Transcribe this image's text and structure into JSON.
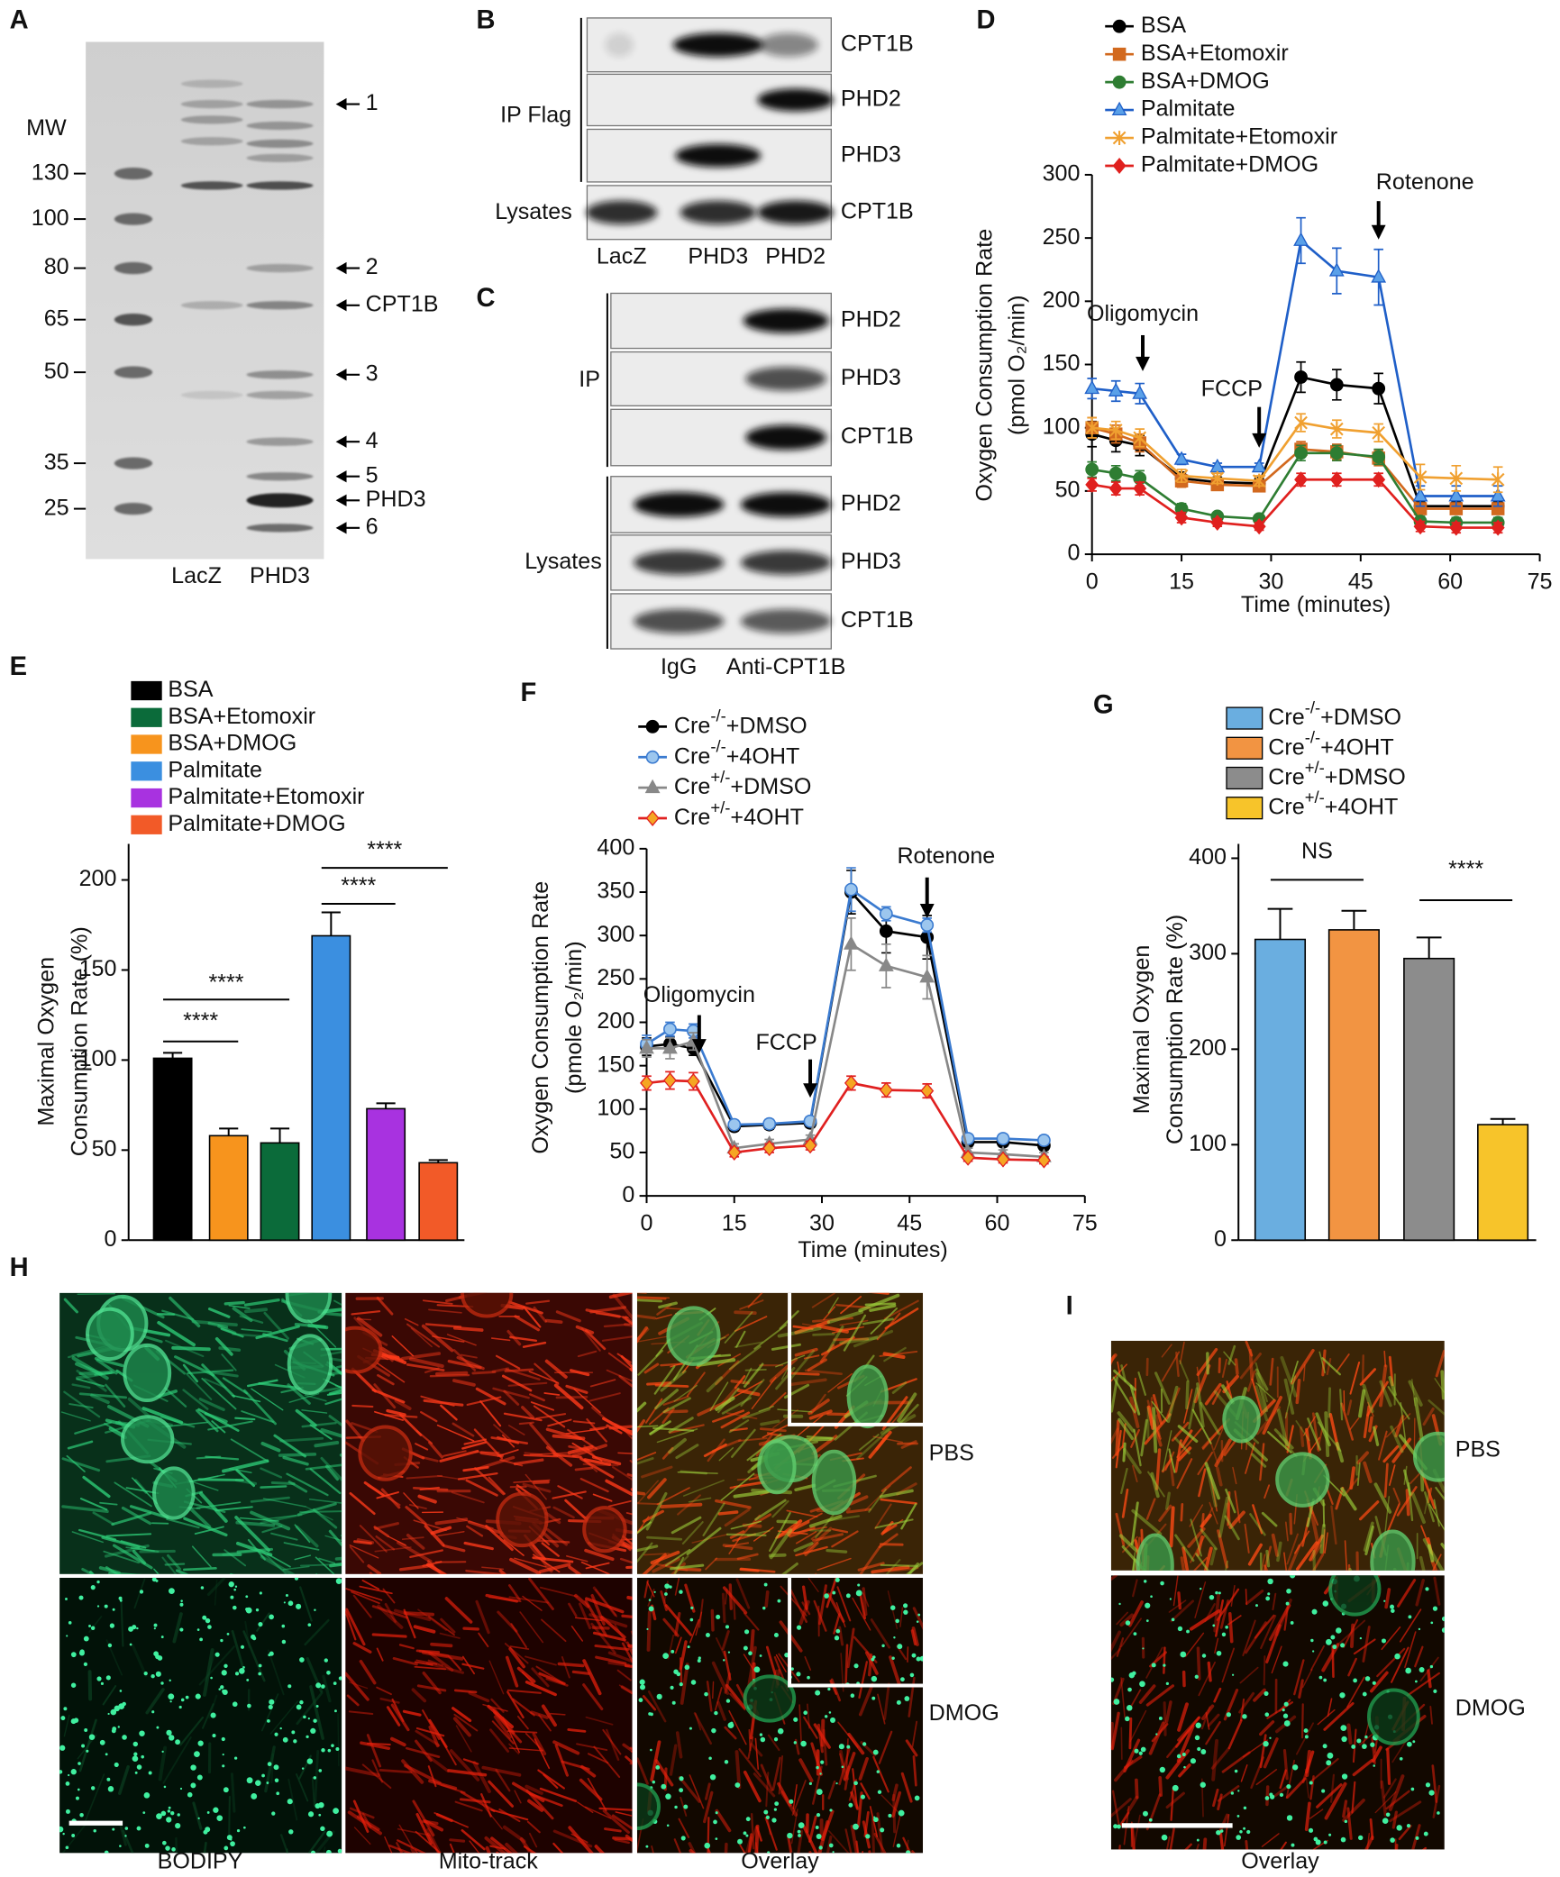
{
  "figure": {
    "A": {
      "label": "A",
      "mw_title": "MW",
      "mw": [
        130,
        100,
        80,
        65,
        50,
        35,
        25
      ],
      "lanes": [
        "LacZ",
        "PHD3"
      ],
      "bands": [
        "1",
        "2",
        "CPT1B",
        "3",
        "4",
        "5",
        "PHD3",
        "6"
      ]
    },
    "B": {
      "label": "B",
      "groups": [
        "IP Flag",
        "Lysates"
      ],
      "rows": [
        "CPT1B",
        "PHD2",
        "PHD3",
        "CPT1B"
      ],
      "lanes": [
        "LacZ",
        "PHD3",
        "PHD2"
      ]
    },
    "C": {
      "label": "C",
      "groups": [
        "IP",
        "Lysates"
      ],
      "rows": [
        "PHD2",
        "PHD3",
        "CPT1B",
        "PHD2",
        "PHD3",
        "CPT1B"
      ],
      "lanes": [
        "IgG",
        "Anti-CPT1B"
      ]
    },
    "H": {
      "label": "H",
      "columns": [
        "BODIPY",
        "Mito-track",
        "Overlay"
      ],
      "rows": [
        "PBS",
        "DMOG"
      ]
    },
    "I": {
      "label": "I",
      "rows": [
        "PBS",
        "DMOG"
      ],
      "column": "Overlay"
    }
  },
  "chart_data": [
    {
      "type": "line",
      "label": "D",
      "x": [
        0,
        4,
        8,
        15,
        21,
        28,
        35,
        41,
        48,
        55,
        61,
        68
      ],
      "xlim": [
        0,
        75
      ],
      "xticks": [
        0,
        15,
        30,
        45,
        60,
        75
      ],
      "ylim": [
        0,
        300
      ],
      "yticks": [
        0,
        50,
        100,
        150,
        200,
        250,
        300
      ],
      "xlabel": "Time (minutes)",
      "ylabel": [
        "Oxygen Consumption Rate",
        "(pmol O₂/min)"
      ],
      "annotations": [
        {
          "text": "Oligomycin",
          "x": 8.5
        },
        {
          "text": "FCCP",
          "x": 28
        },
        {
          "text": "Rotenone",
          "x": 48
        }
      ],
      "series": [
        {
          "name": "BSA",
          "color": "#000000",
          "marker": "circle",
          "values": [
            95,
            90,
            86,
            60,
            57,
            56,
            140,
            134,
            131,
            38,
            38,
            38
          ],
          "errors": [
            10,
            9,
            8,
            5,
            4,
            4,
            12,
            12,
            12,
            5,
            5,
            5
          ]
        },
        {
          "name": "BSA+Etomoxir",
          "color": "#d2691e",
          "marker": "square",
          "values": [
            100,
            95,
            88,
            58,
            55,
            54,
            83,
            81,
            76,
            36,
            36,
            36
          ],
          "errors": [
            8,
            7,
            7,
            5,
            4,
            4,
            6,
            6,
            6,
            4,
            4,
            4
          ]
        },
        {
          "name": "BSA+DMOG",
          "color": "#2e7d32",
          "marker": "circle",
          "values": [
            67,
            64,
            60,
            36,
            30,
            28,
            80,
            80,
            77,
            26,
            25,
            25
          ],
          "errors": [
            6,
            6,
            6,
            4,
            3,
            3,
            6,
            6,
            6,
            4,
            4,
            4
          ]
        },
        {
          "name": "Palmitate",
          "color": "#1f5fc8",
          "marker": "triangle",
          "marker_fill": "#5aa0e8",
          "values": [
            131,
            129,
            127,
            75,
            69,
            69,
            248,
            224,
            219,
            46,
            46,
            46
          ],
          "errors": [
            8,
            8,
            8,
            4,
            3,
            3,
            18,
            18,
            22,
            8,
            8,
            8
          ]
        },
        {
          "name": "Palmitate+Etomoxir",
          "color": "#f0a030",
          "marker": "x",
          "values": [
            100,
            98,
            92,
            62,
            60,
            58,
            104,
            99,
            96,
            61,
            60,
            59
          ],
          "errors": [
            8,
            7,
            7,
            5,
            4,
            4,
            7,
            7,
            7,
            10,
            10,
            10
          ]
        },
        {
          "name": "Palmitate+DMOG",
          "color": "#e0201e",
          "marker": "diamond",
          "values": [
            55,
            52,
            52,
            29,
            25,
            22,
            59,
            59,
            59,
            22,
            21,
            21
          ],
          "errors": [
            5,
            5,
            5,
            4,
            3,
            3,
            5,
            5,
            5,
            4,
            4,
            4
          ]
        }
      ]
    },
    {
      "type": "bar",
      "label": "E",
      "ylim": [
        0,
        220
      ],
      "yticks": [
        0,
        50,
        100,
        150,
        200
      ],
      "ylabel": [
        "Maximal Oxygen",
        "Consumption Rate (%)"
      ],
      "significance": [
        "****",
        "****",
        "****",
        "****"
      ],
      "series": [
        {
          "name": "BSA",
          "color": "#000000",
          "values": [
            101
          ],
          "errors": [
            3
          ]
        },
        {
          "name": "BSA+Etomoxir",
          "color": "#0b6b3a",
          "values": [
            54
          ],
          "errors": [
            8
          ]
        },
        {
          "name": "BSA+DMOG",
          "color": "#f7941d",
          "values": [
            58
          ],
          "errors": [
            4
          ]
        },
        {
          "name": "Palmitate",
          "color": "#3b8fe0",
          "values": [
            169
          ],
          "errors": [
            13
          ]
        },
        {
          "name": "Palmitate+Etomoxir",
          "color": "#a832e0",
          "values": [
            73
          ],
          "errors": [
            3
          ]
        },
        {
          "name": "Palmitate+DMOG",
          "color": "#f25a28",
          "values": [
            43
          ],
          "errors": [
            1.5
          ]
        }
      ]
    },
    {
      "type": "line",
      "label": "F",
      "x": [
        0,
        4,
        8,
        15,
        21,
        28,
        35,
        41,
        48,
        55,
        61,
        68
      ],
      "xlim": [
        0,
        75
      ],
      "xticks": [
        0,
        15,
        30,
        45,
        60,
        75
      ],
      "ylim": [
        0,
        400
      ],
      "yticks": [
        0,
        50,
        100,
        150,
        200,
        250,
        300,
        350,
        400
      ],
      "xlabel": "Time (minutes)",
      "ylabel": [
        "Oxygen Consumption Rate",
        "(pmole O₂/min)"
      ],
      "annotations": [
        {
          "text": "Oligomycin",
          "x": 9
        },
        {
          "text": "FCCP",
          "x": 28
        },
        {
          "text": "Rotenone",
          "x": 48
        }
      ],
      "series": [
        {
          "name": "Cre-/-+DMSO",
          "color": "#000000",
          "marker": "circle",
          "values": [
            172,
            175,
            170,
            80,
            82,
            84,
            350,
            305,
            298,
            62,
            62,
            58
          ],
          "errors": [
            10,
            8,
            8,
            5,
            5,
            5,
            25,
            25,
            25,
            5,
            5,
            5
          ]
        },
        {
          "name": "Cre-/-+4OHT",
          "color": "#3b7bd0",
          "marker": "circle",
          "marker_fill": "#9cc6ee",
          "values": [
            175,
            192,
            190,
            82,
            83,
            86,
            353,
            325,
            312,
            66,
            66,
            64
          ],
          "errors": [
            10,
            8,
            8,
            5,
            5,
            5,
            25,
            8,
            8,
            5,
            5,
            5
          ]
        },
        {
          "name": "Cre+/-+DMSO",
          "color": "#888888",
          "marker": "triangle",
          "values": [
            170,
            170,
            178,
            55,
            60,
            65,
            290,
            265,
            252,
            50,
            48,
            45
          ],
          "errors": [
            10,
            12,
            10,
            5,
            5,
            5,
            30,
            25,
            25,
            5,
            5,
            5
          ]
        },
        {
          "name": "Cre+/-+4OHT",
          "color": "#e02020",
          "marker": "diamond",
          "marker_fill": "#f5a623",
          "values": [
            130,
            133,
            132,
            50,
            55,
            58,
            130,
            122,
            121,
            44,
            42,
            41
          ],
          "errors": [
            8,
            10,
            10,
            5,
            5,
            5,
            8,
            8,
            8,
            4,
            4,
            4
          ]
        }
      ]
    },
    {
      "type": "bar",
      "label": "G",
      "ylim": [
        0,
        415
      ],
      "yticks": [
        0,
        100,
        200,
        300,
        400
      ],
      "ylabel": [
        "Maximal Oxygen",
        "Consumption Rate (%)"
      ],
      "significance": [
        "NS",
        "****"
      ],
      "series": [
        {
          "name": "Cre-/-+DMSO",
          "color": "#6aaee0",
          "values": [
            315
          ],
          "errors": [
            32
          ]
        },
        {
          "name": "Cre-/-+4OHT",
          "color": "#f29442",
          "values": [
            325
          ],
          "errors": [
            20
          ]
        },
        {
          "name": "Cre+/-+DMSO",
          "color": "#8c8c8c",
          "values": [
            295
          ],
          "errors": [
            22
          ]
        },
        {
          "name": "Cre+/-+4OHT",
          "color": "#f7c42a",
          "values": [
            121
          ],
          "errors": [
            6
          ]
        }
      ]
    }
  ]
}
